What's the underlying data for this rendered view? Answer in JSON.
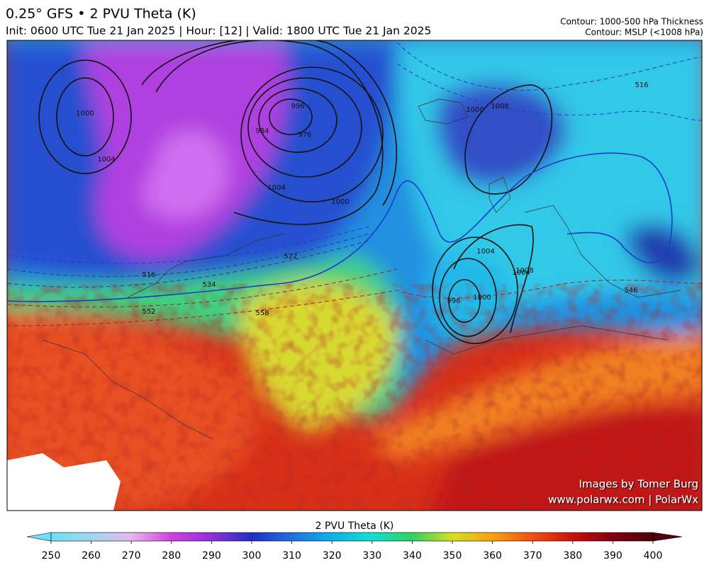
{
  "header": {
    "title": "0.25° GFS • 2 PVU Theta (K)",
    "subtitle": "Init: 0600 UTC Tue 21 Jan 2025 | Hour: [12] | Valid: 1800 UTC Tue 21 Jan 2025",
    "contours": [
      "Contour: 1000-500 hPa Thickness",
      "Contour: MSLP (<1008 hPa)"
    ]
  },
  "map": {
    "contour_labels": [
      "1000",
      "1004",
      "976",
      "984",
      "996",
      "1000",
      "1004",
      "1000",
      "1004",
      "996",
      "1000",
      "1004",
      "1008",
      "1008",
      "534",
      "552",
      "558",
      "546",
      "516",
      "522",
      "516"
    ]
  },
  "credits": [
    "Images by Tomer Burg",
    "www.polarwx.com | PolarWx"
  ],
  "colorbar": {
    "label": "2 PVU Theta (K)",
    "lim": [
      250,
      400
    ],
    "ticks": [
      250,
      260,
      270,
      280,
      290,
      300,
      310,
      320,
      330,
      340,
      350,
      360,
      370,
      380,
      390,
      400
    ],
    "colors": [
      "#6fe0f5",
      "#9fd8f0",
      "#e6b8f0",
      "#d040e0",
      "#9030d8",
      "#2030c0",
      "#2070e0",
      "#10b0e8",
      "#10e0d0",
      "#30d060",
      "#d8e020",
      "#f8a010",
      "#f05010",
      "#c81010",
      "#800010",
      "#500008"
    ]
  }
}
